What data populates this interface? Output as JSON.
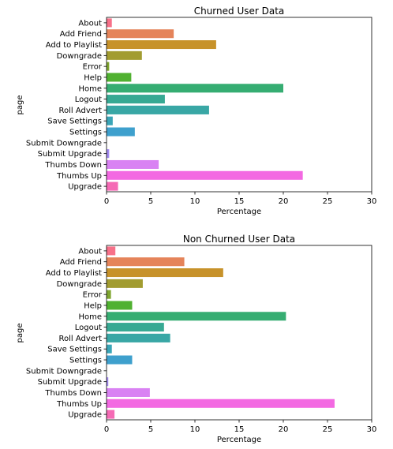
{
  "chart_data": [
    {
      "type": "bar",
      "orientation": "horizontal",
      "title": "Churned User Data",
      "xlabel": "Percentage",
      "ylabel": "page",
      "xlim": [
        0,
        30
      ],
      "xticks": [
        0,
        5,
        10,
        15,
        20,
        25,
        30
      ],
      "grid": false,
      "categories": [
        "About",
        "Add Friend",
        "Add to Playlist",
        "Downgrade",
        "Error",
        "Help",
        "Home",
        "Logout",
        "Roll Advert",
        "Save Settings",
        "Settings",
        "Submit Downgrade",
        "Submit Upgrade",
        "Thumbs Down",
        "Thumbs Up",
        "Upgrade"
      ],
      "values": [
        0.6,
        7.6,
        12.4,
        4.0,
        0.3,
        2.8,
        20.0,
        6.6,
        11.6,
        0.7,
        3.2,
        0.0,
        0.3,
        5.9,
        22.2,
        1.3
      ]
    },
    {
      "type": "bar",
      "orientation": "horizontal",
      "title": "Non Churned User Data",
      "xlabel": "Percentage",
      "ylabel": "page",
      "xlim": [
        0,
        30
      ],
      "xticks": [
        0,
        5,
        10,
        15,
        20,
        25,
        30
      ],
      "grid": false,
      "categories": [
        "About",
        "Add Friend",
        "Add to Playlist",
        "Downgrade",
        "Error",
        "Help",
        "Home",
        "Logout",
        "Roll Advert",
        "Save Settings",
        "Settings",
        "Submit Downgrade",
        "Submit Upgrade",
        "Thumbs Down",
        "Thumbs Up",
        "Upgrade"
      ],
      "values": [
        1.0,
        8.8,
        13.2,
        4.1,
        0.5,
        2.9,
        20.3,
        6.5,
        7.2,
        0.6,
        2.9,
        0.0,
        0.2,
        4.9,
        25.8,
        0.9
      ]
    }
  ],
  "colors": [
    "#f77189",
    "#e5845a",
    "#c7922a",
    "#a29c30",
    "#7fa52f",
    "#50b131",
    "#36ad72",
    "#37a993",
    "#39a7a5",
    "#3aa5b7",
    "#3ea0cd",
    "#6e94f2",
    "#a48cf4",
    "#d982f3",
    "#f369e2",
    "#f56bb5"
  ]
}
